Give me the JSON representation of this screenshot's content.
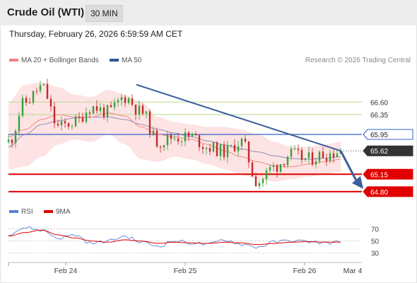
{
  "header": {
    "title": "Crude Oil (WTI)",
    "timeframe": "30 MIN"
  },
  "datetime": "Thursday, February 26, 2026 6:59:59 AM CET",
  "legend": {
    "ma20_bb": "MA 20 + Bollinger Bands",
    "ma50": "MA 50",
    "research": "Research © 2026 Trading Central"
  },
  "rsi_legend": {
    "rsi": "RSI",
    "ma9": "9MA"
  },
  "colors": {
    "ma20": "#f08080",
    "ma50": "#34569a",
    "bands_fill": "#fde3e3",
    "up_candle": "#32a23a",
    "down_candle": "#c62828",
    "resistance_green": "#bcd98e",
    "pivot_blue": "#2f5fc8",
    "support_red": "#e00000",
    "current_price": "#333333",
    "trendline": "#3a5f9e",
    "rsi": "#5b7fd6",
    "rsi_ma": "#e00000"
  },
  "chart_data": [
    {
      "type": "line",
      "subtype": "candlestick",
      "title": "Crude Oil (WTI)",
      "timeframe": "30 MIN",
      "x_ticks": [
        "Feb 24",
        "Feb 25",
        "Feb 26",
        "Mar 4"
      ],
      "ylim": [
        64.6,
        67.3
      ],
      "series": [
        {
          "name": "MA 20 + Bollinger Bands",
          "values": [
            65.9,
            66.05,
            66.25,
            66.35,
            66.3,
            66.3,
            66.38,
            66.32,
            66.1,
            65.95,
            65.9,
            65.85,
            65.75,
            65.62,
            65.5,
            65.4,
            65.32,
            65.3,
            65.35,
            65.4,
            65.45
          ]
        },
        {
          "name": "MA 50",
          "values": [
            65.7,
            65.95,
            66.15,
            66.22,
            66.28,
            66.3,
            66.3,
            66.25,
            66.15,
            66.05,
            65.98,
            65.9,
            65.82,
            65.74,
            65.66,
            65.6,
            65.52,
            65.47,
            65.45,
            65.47,
            65.5
          ]
        },
        {
          "name": "Bollinger Upper",
          "values": [
            66.6,
            66.95,
            67.0,
            66.9,
            66.75,
            66.7,
            66.85,
            66.75,
            66.6,
            66.3,
            66.2,
            66.15,
            66.1,
            66.1,
            66.05,
            65.95,
            65.8,
            65.7,
            65.7,
            65.75,
            65.8
          ]
        },
        {
          "name": "Bollinger Lower",
          "values": [
            65.25,
            65.3,
            65.5,
            65.75,
            65.85,
            65.8,
            65.95,
            65.75,
            65.45,
            65.4,
            65.5,
            65.45,
            65.35,
            65.25,
            65.15,
            65.05,
            65.0,
            65.05,
            65.1,
            65.15,
            65.2
          ]
        },
        {
          "name": "Price",
          "values": [
            65.8,
            66.6,
            66.9,
            66.1,
            66.2,
            66.5,
            66.4,
            66.7,
            66.4,
            65.8,
            65.9,
            65.9,
            65.7,
            65.6,
            65.8,
            65.0,
            65.3,
            65.55,
            65.45,
            65.55,
            65.62
          ]
        }
      ],
      "levels": [
        {
          "label": "66.60",
          "value": 66.6,
          "kind": "resistance"
        },
        {
          "label": "66.35",
          "value": 66.35,
          "kind": "resistance"
        },
        {
          "label": "65.95",
          "value": 65.95,
          "kind": "pivot"
        },
        {
          "label": "65.62",
          "value": 65.62,
          "kind": "last_price"
        },
        {
          "label": "65.15",
          "value": 65.15,
          "kind": "support"
        },
        {
          "label": "64.80",
          "value": 64.8,
          "kind": "support"
        }
      ],
      "trendline": {
        "from": 66.95,
        "to": 65.62
      },
      "forecast_target": 64.8
    },
    {
      "type": "line",
      "title": "RSI",
      "ylim": [
        25,
        80
      ],
      "y_ticks": [
        70,
        50,
        30
      ],
      "series": [
        {
          "name": "RSI",
          "values": [
            62,
            72,
            68,
            55,
            60,
            46,
            50,
            58,
            48,
            42,
            50,
            47,
            44,
            52,
            45,
            40,
            48,
            51,
            49,
            47,
            48
          ]
        },
        {
          "name": "9MA",
          "values": [
            58,
            64,
            68,
            60,
            55,
            50,
            48,
            52,
            50,
            46,
            48,
            47,
            46,
            48,
            47,
            44,
            46,
            48,
            49,
            48,
            48
          ]
        }
      ]
    }
  ]
}
